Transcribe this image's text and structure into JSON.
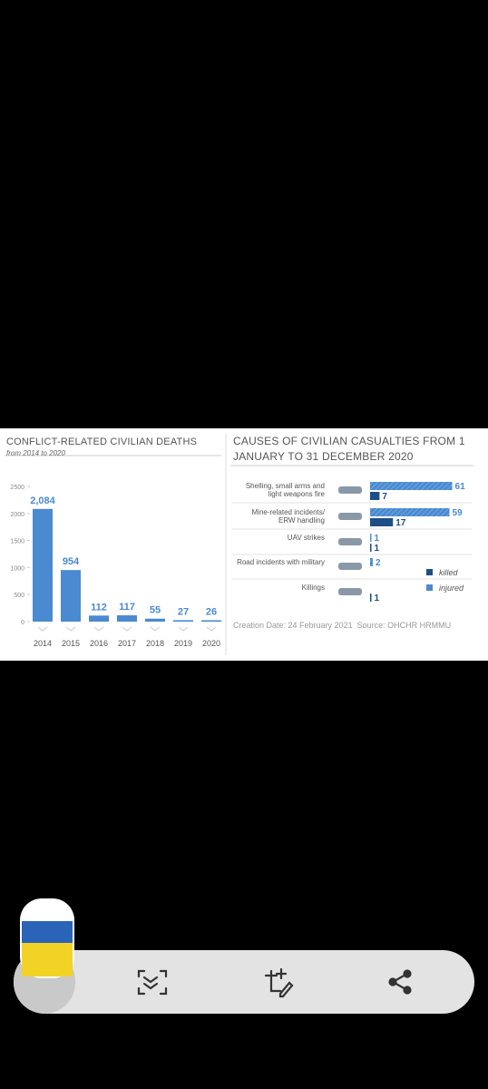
{
  "chart_data": [
    {
      "type": "bar",
      "title": "CONFLICT-RELATED CIVILIAN DEATHS",
      "subtitle": "from 2014 to 2020",
      "categories": [
        "2014",
        "2015",
        "2016",
        "2017",
        "2018",
        "2019",
        "2020"
      ],
      "values": [
        2084,
        954,
        112,
        117,
        55,
        27,
        26
      ],
      "value_labels": [
        "2,084",
        "954",
        "112",
        "117",
        "55",
        "27",
        "26"
      ],
      "color": "#4a8ad0",
      "ylim": [
        0,
        2500
      ],
      "yticks": [
        0,
        500,
        1000,
        1500,
        2000,
        2500
      ]
    },
    {
      "type": "hbar",
      "title": "CAUSES OF CIVILIAN CASUALTIES FROM 1 JANUARY TO 31 DECEMBER 2020",
      "categories": [
        "Shelling, small arms and light weapons fire",
        "Mine-related incidents/ ERW handling",
        "UAV strikes",
        "Road incidents with military",
        "Killings"
      ],
      "series": [
        {
          "name": "injured",
          "color": "#4a8ad0",
          "values": [
            61,
            59,
            1,
            2,
            null
          ]
        },
        {
          "name": "killed",
          "color": "#1d4f86",
          "values": [
            7,
            17,
            1,
            null,
            1
          ]
        }
      ],
      "xlim": [
        0,
        62
      ],
      "source": "Creation Date: 24 February 2021  Source: OHCHR HRMMU"
    }
  ]
}
